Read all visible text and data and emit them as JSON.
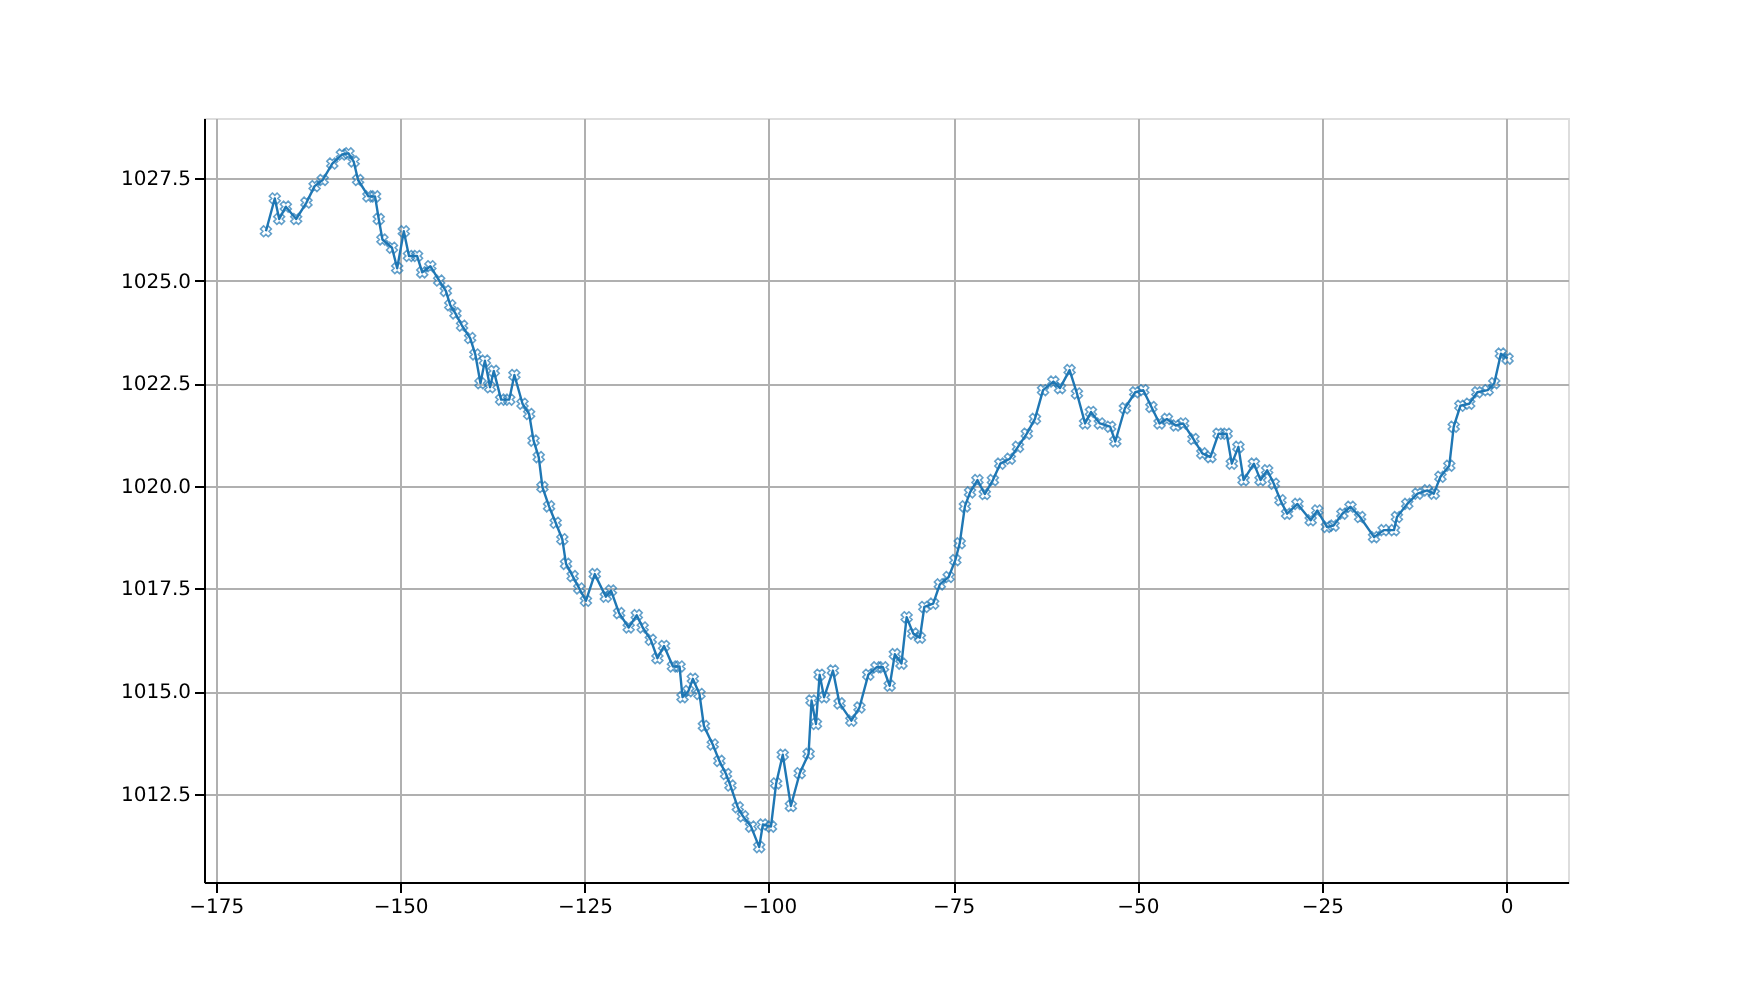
{
  "chart_data": {
    "type": "line",
    "marker": "cross",
    "grid": true,
    "xlim": [
      -176.6,
      8.4
    ],
    "ylim": [
      1010.35,
      1028.96
    ],
    "xticks": [
      -175,
      -150,
      -125,
      -100,
      -75,
      -50,
      -25,
      0
    ],
    "yticks": [
      {
        "value": 1012.5,
        "label": "1012.5"
      },
      {
        "value": 1015,
        "label": "1015.0"
      },
      {
        "value": 1017.5,
        "label": "1017.5"
      },
      {
        "value": 1020,
        "label": "1020.0"
      },
      {
        "value": 1022.5,
        "label": "1022.5"
      },
      {
        "value": 1025,
        "label": "1025.0"
      },
      {
        "value": 1027.5,
        "label": "1027.5"
      }
    ],
    "series": [
      {
        "color": "#1f77b4",
        "x": [
          -168.2,
          -167,
          -166.4,
          -165.5,
          -164.1,
          -162.7,
          -161.6,
          -160.5,
          -159.2,
          -157.9,
          -157,
          -156.3,
          -155.7,
          -154.3,
          -153.4,
          -152.9,
          -152.4,
          -151.1,
          -150.4,
          -149.5,
          -148.8,
          -147.7,
          -147,
          -145.9,
          -144.7,
          -143.8,
          -143.2,
          -142.5,
          -141.6,
          -140.5,
          -139.8,
          -139.1,
          -138.5,
          -137.8,
          -137.3,
          -136.3,
          -135.2,
          -134.5,
          -133.4,
          -132.5,
          -131.9,
          -131.2,
          -130.7,
          -129.8,
          -128.9,
          -128,
          -127.5,
          -126.6,
          -125.7,
          -124.8,
          -123.6,
          -122.1,
          -121.4,
          -120.3,
          -119,
          -117.9,
          -117.1,
          -116,
          -115.1,
          -114.2,
          -113,
          -112.1,
          -111.7,
          -110.9,
          -110.3,
          -109.4,
          -108.8,
          -107.6,
          -106.7,
          -105.8,
          -105.2,
          -104.2,
          -103.5,
          -102.4,
          -101.3,
          -100.8,
          -99.7,
          -99,
          -98.1,
          -97,
          -95.8,
          -94.6,
          -94.2,
          -93.6,
          -93.1,
          -92.5,
          -91.3,
          -90.4,
          -88.8,
          -87.7,
          -86.5,
          -85.4,
          -84.5,
          -83.6,
          -82.9,
          -82,
          -81.3,
          -80.4,
          -79.5,
          -78.9,
          -77.7,
          -76.8,
          -75.6,
          -74.7,
          -74.1,
          -73.4,
          -72.7,
          -71.7,
          -70.7,
          -69.6,
          -68.6,
          -67.3,
          -66.2,
          -65,
          -63.9,
          -62.8,
          -61.4,
          -60.5,
          -59.2,
          -58.2,
          -57.1,
          -56.3,
          -55.1,
          -53.7,
          -53,
          -51.7,
          -50.3,
          -49.2,
          -48.1,
          -47,
          -46,
          -44.8,
          -43.8,
          -42.4,
          -41.2,
          -40.1,
          -39,
          -37.9,
          -37.2,
          -36.3,
          -35.6,
          -34.2,
          -33.3,
          -32.4,
          -31.5,
          -30.6,
          -29.7,
          -28.3,
          -26.5,
          -25.6,
          -24.3,
          -23.4,
          -22.2,
          -21.1,
          -19.8,
          -17.9,
          -16.6,
          -15.2,
          -14.8,
          -13.4,
          -12,
          -10.7,
          -9.8,
          -8.9,
          -7.7,
          -7.1,
          -6.2,
          -5,
          -3.9,
          -2.5,
          -1.6,
          -0.7,
          0.2
        ],
        "values": [
          1026.2,
          1027.0,
          1026.5,
          1026.8,
          1026.5,
          1026.9,
          1027.3,
          1027.45,
          1027.85,
          1028.07,
          1028.1,
          1027.9,
          1027.45,
          1027.05,
          1027.05,
          1026.5,
          1026.0,
          1025.8,
          1025.3,
          1026.2,
          1025.6,
          1025.6,
          1025.2,
          1025.35,
          1025.0,
          1024.75,
          1024.4,
          1024.2,
          1023.9,
          1023.6,
          1023.2,
          1022.5,
          1023.05,
          1022.4,
          1022.8,
          1022.1,
          1022.1,
          1022.7,
          1022.0,
          1021.75,
          1021.1,
          1020.7,
          1019.97,
          1019.5,
          1019.1,
          1018.7,
          1018.1,
          1017.8,
          1017.5,
          1017.2,
          1017.85,
          1017.3,
          1017.45,
          1016.9,
          1016.55,
          1016.85,
          1016.55,
          1016.25,
          1015.8,
          1016.1,
          1015.6,
          1015.6,
          1014.85,
          1015.0,
          1015.3,
          1014.93,
          1014.15,
          1013.7,
          1013.3,
          1012.98,
          1012.7,
          1012.17,
          1011.95,
          1011.7,
          1011.2,
          1011.75,
          1011.7,
          1012.75,
          1013.45,
          1012.2,
          1013.0,
          1013.47,
          1014.77,
          1014.2,
          1015.4,
          1014.85,
          1015.5,
          1014.7,
          1014.28,
          1014.6,
          1015.4,
          1015.58,
          1015.58,
          1015.13,
          1015.9,
          1015.67,
          1016.8,
          1016.4,
          1016.3,
          1017.05,
          1017.13,
          1017.6,
          1017.78,
          1018.19,
          1018.6,
          1019.5,
          1019.84,
          1020.14,
          1019.8,
          1020.14,
          1020.54,
          1020.66,
          1020.95,
          1021.27,
          1021.63,
          1022.33,
          1022.54,
          1022.38,
          1022.82,
          1022.25,
          1021.52,
          1021.8,
          1021.52,
          1021.44,
          1021.08,
          1021.89,
          1022.28,
          1022.33,
          1021.92,
          1021.52,
          1021.63,
          1021.47,
          1021.52,
          1021.14,
          1020.79,
          1020.7,
          1021.27,
          1021.27,
          1020.54,
          1020.95,
          1020.14,
          1020.54,
          1020.14,
          1020.38,
          1020.05,
          1019.65,
          1019.32,
          1019.56,
          1019.16,
          1019.4,
          1019.0,
          1019.03,
          1019.32,
          1019.49,
          1019.24,
          1018.75,
          1018.92,
          1018.92,
          1019.24,
          1019.56,
          1019.81,
          1019.89,
          1019.81,
          1020.22,
          1020.49,
          1021.44,
          1021.95,
          1022.0,
          1022.28,
          1022.33,
          1022.5,
          1023.22,
          1023.1
        ]
      }
    ]
  }
}
